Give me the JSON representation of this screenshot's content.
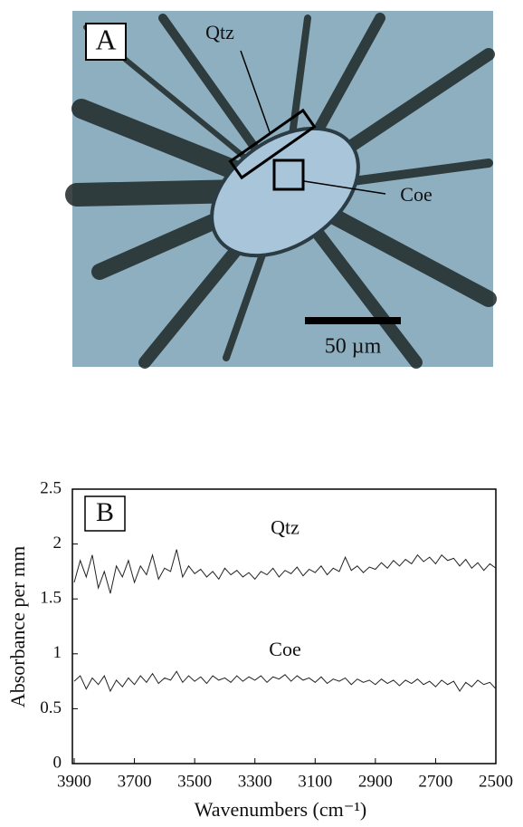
{
  "panel_a": {
    "label": "A",
    "annotations": [
      "Qtz",
      "Coe"
    ],
    "scale_bar": "50 µm"
  },
  "chart_data": {
    "type": "line",
    "panel_label": "B",
    "x_label": "Wavenumbers (cm⁻¹)",
    "y_label": "Absorbance per mm",
    "xlim": [
      3900,
      2500
    ],
    "xticks": [
      3900,
      3700,
      3500,
      3300,
      3100,
      2900,
      2700,
      2500
    ],
    "ylim": [
      0,
      2.5
    ],
    "yticks": [
      0,
      0.5,
      1,
      1.5,
      2,
      2.5
    ],
    "x": [
      3900,
      3880,
      3860,
      3840,
      3820,
      3800,
      3780,
      3760,
      3740,
      3720,
      3700,
      3680,
      3660,
      3640,
      3620,
      3600,
      3580,
      3560,
      3540,
      3520,
      3500,
      3480,
      3460,
      3440,
      3420,
      3400,
      3380,
      3360,
      3340,
      3320,
      3300,
      3280,
      3260,
      3240,
      3220,
      3200,
      3180,
      3160,
      3140,
      3120,
      3100,
      3080,
      3060,
      3040,
      3020,
      3000,
      2980,
      2960,
      2940,
      2920,
      2900,
      2880,
      2860,
      2840,
      2820,
      2800,
      2780,
      2760,
      2740,
      2720,
      2700,
      2680,
      2660,
      2640,
      2620,
      2600,
      2580,
      2560,
      2540,
      2520,
      2500
    ],
    "series": [
      {
        "name": "Qtz",
        "color": "#222222",
        "values": [
          1.65,
          1.85,
          1.7,
          1.9,
          1.6,
          1.75,
          1.55,
          1.8,
          1.7,
          1.85,
          1.65,
          1.8,
          1.72,
          1.9,
          1.68,
          1.78,
          1.75,
          1.95,
          1.7,
          1.8,
          1.73,
          1.77,
          1.7,
          1.75,
          1.68,
          1.78,
          1.72,
          1.76,
          1.7,
          1.74,
          1.68,
          1.75,
          1.72,
          1.78,
          1.7,
          1.76,
          1.73,
          1.79,
          1.71,
          1.77,
          1.74,
          1.8,
          1.72,
          1.78,
          1.75,
          1.88,
          1.76,
          1.8,
          1.74,
          1.79,
          1.77,
          1.83,
          1.78,
          1.85,
          1.8,
          1.86,
          1.82,
          1.9,
          1.84,
          1.88,
          1.82,
          1.9,
          1.85,
          1.87,
          1.8,
          1.86,
          1.78,
          1.83,
          1.76,
          1.82,
          1.78
        ]
      },
      {
        "name": "Coe",
        "color": "#222222",
        "values": [
          0.75,
          0.8,
          0.68,
          0.78,
          0.72,
          0.8,
          0.66,
          0.76,
          0.7,
          0.78,
          0.72,
          0.8,
          0.74,
          0.82,
          0.73,
          0.78,
          0.76,
          0.84,
          0.74,
          0.8,
          0.75,
          0.79,
          0.73,
          0.8,
          0.76,
          0.78,
          0.74,
          0.8,
          0.75,
          0.79,
          0.76,
          0.8,
          0.74,
          0.79,
          0.77,
          0.81,
          0.75,
          0.8,
          0.76,
          0.78,
          0.74,
          0.79,
          0.73,
          0.77,
          0.75,
          0.78,
          0.72,
          0.77,
          0.74,
          0.76,
          0.72,
          0.77,
          0.73,
          0.76,
          0.71,
          0.76,
          0.73,
          0.77,
          0.72,
          0.75,
          0.7,
          0.76,
          0.72,
          0.75,
          0.66,
          0.74,
          0.7,
          0.76,
          0.72,
          0.74,
          0.68
        ]
      }
    ]
  }
}
